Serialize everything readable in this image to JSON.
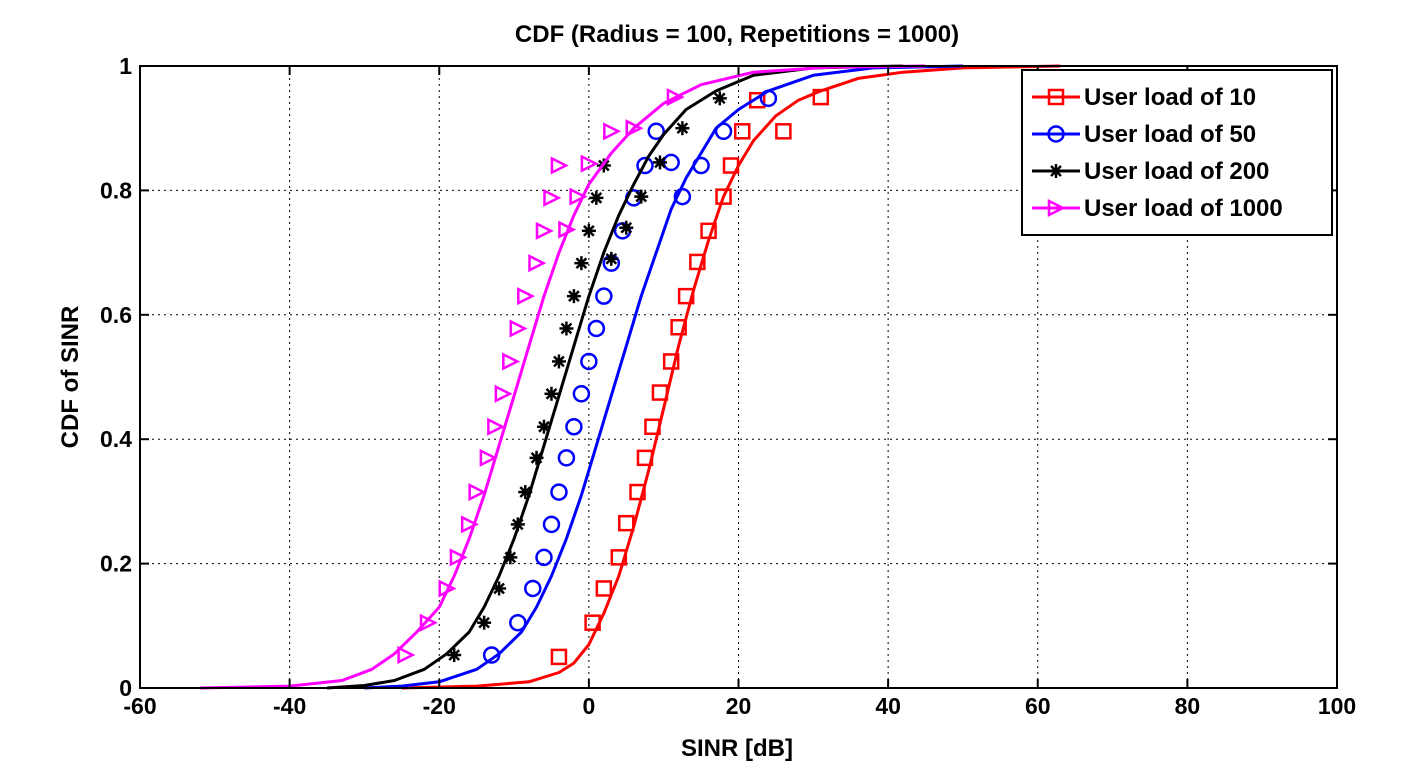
{
  "chart_data": {
    "type": "line",
    "title": "CDF (Radius = 100, Repetitions = 1000)",
    "xlabel": "SINR [dB]",
    "ylabel": "CDF of SINR",
    "xlim": [
      -60,
      100
    ],
    "ylim": [
      0,
      1
    ],
    "xticks": [
      -60,
      -40,
      -20,
      0,
      20,
      40,
      60,
      80,
      100
    ],
    "yticks": [
      0,
      0.2,
      0.4,
      0.6,
      0.8,
      1
    ],
    "xtick_labels": [
      "-60",
      "-40",
      "-20",
      "0",
      "20",
      "40",
      "60",
      "80",
      "100"
    ],
    "ytick_labels": [
      "0",
      "0.2",
      "0.4",
      "0.6",
      "0.8",
      "1"
    ],
    "grid": true,
    "legend_position": "top-right",
    "series": [
      {
        "name": "User load of 10",
        "color": "#ff0000",
        "marker": "square",
        "x": [
          -25,
          -15,
          -8,
          -4,
          -2,
          0,
          2,
          4,
          6,
          8,
          10,
          12,
          14,
          16,
          18,
          20,
          22,
          25,
          28,
          31,
          36,
          42,
          50,
          63
        ],
        "y": [
          0.0,
          0.003,
          0.01,
          0.025,
          0.04,
          0.07,
          0.12,
          0.18,
          0.26,
          0.35,
          0.45,
          0.55,
          0.64,
          0.72,
          0.79,
          0.84,
          0.88,
          0.92,
          0.945,
          0.96,
          0.98,
          0.99,
          0.997,
          1.0
        ],
        "marker_x": [
          -4,
          0.5,
          2,
          4,
          5,
          6.5,
          7.5,
          8.5,
          9.5,
          11,
          12,
          13,
          14.5,
          16,
          18,
          19,
          20.5,
          22.5,
          26,
          31
        ],
        "marker_y": [
          0.05,
          0.105,
          0.16,
          0.21,
          0.265,
          0.315,
          0.37,
          0.42,
          0.475,
          0.525,
          0.58,
          0.63,
          0.685,
          0.735,
          0.79,
          0.84,
          0.895,
          0.945,
          0.895,
          0.95
        ]
      },
      {
        "name": "User load of 50",
        "color": "#0000ff",
        "marker": "circle",
        "x": [
          -30,
          -25,
          -20,
          -15,
          -12,
          -9,
          -7,
          -5,
          -3,
          -1,
          1,
          3,
          5,
          7,
          9,
          11,
          13,
          15,
          17,
          20,
          24,
          30,
          38,
          50
        ],
        "y": [
          0.0,
          0.003,
          0.01,
          0.03,
          0.055,
          0.09,
          0.13,
          0.18,
          0.24,
          0.31,
          0.39,
          0.47,
          0.55,
          0.63,
          0.7,
          0.77,
          0.82,
          0.86,
          0.9,
          0.93,
          0.96,
          0.985,
          0.997,
          1.0
        ],
        "marker_x": [
          -13,
          -9.5,
          -7.5,
          -6,
          -5,
          -4,
          -3,
          -2,
          -1,
          0,
          1,
          2,
          3,
          4.5,
          6,
          7.5,
          9,
          11,
          12.5,
          15,
          18,
          24
        ],
        "marker_y": [
          0.053,
          0.105,
          0.16,
          0.21,
          0.263,
          0.315,
          0.37,
          0.42,
          0.473,
          0.525,
          0.578,
          0.63,
          0.683,
          0.735,
          0.788,
          0.84,
          0.895,
          0.845,
          0.79,
          0.84,
          0.895,
          0.948
        ]
      },
      {
        "name": "User load of 200",
        "color": "#000000",
        "marker": "asterisk",
        "x": [
          -35,
          -30,
          -26,
          -22,
          -19,
          -16,
          -14,
          -12,
          -10,
          -8,
          -6,
          -4,
          -2,
          0,
          2,
          4,
          6,
          8,
          10,
          13,
          17,
          22,
          30,
          42
        ],
        "y": [
          0.0,
          0.004,
          0.012,
          0.03,
          0.055,
          0.09,
          0.13,
          0.18,
          0.24,
          0.31,
          0.39,
          0.47,
          0.55,
          0.63,
          0.7,
          0.76,
          0.81,
          0.855,
          0.89,
          0.93,
          0.96,
          0.985,
          0.997,
          1.0
        ],
        "marker_x": [
          -18,
          -14,
          -12,
          -10.5,
          -9.5,
          -8.5,
          -7,
          -6,
          -5,
          -4,
          -3,
          -2,
          -1,
          0,
          1,
          2,
          3,
          5,
          7,
          9.5,
          12.5,
          17.5
        ],
        "marker_y": [
          0.053,
          0.105,
          0.16,
          0.21,
          0.263,
          0.315,
          0.37,
          0.42,
          0.473,
          0.525,
          0.578,
          0.63,
          0.683,
          0.735,
          0.788,
          0.84,
          0.69,
          0.74,
          0.79,
          0.845,
          0.9,
          0.948
        ]
      },
      {
        "name": "User load of 1000",
        "color": "#ff00ff",
        "marker": "triangle-right",
        "x": [
          -52,
          -40,
          -33,
          -29,
          -26,
          -23,
          -20,
          -18,
          -16,
          -14,
          -12,
          -10,
          -8,
          -6,
          -4,
          -2,
          0,
          3,
          6,
          10,
          15,
          22,
          32,
          45
        ],
        "y": [
          0.0,
          0.003,
          0.012,
          0.03,
          0.055,
          0.09,
          0.13,
          0.18,
          0.24,
          0.31,
          0.39,
          0.47,
          0.55,
          0.63,
          0.7,
          0.76,
          0.81,
          0.86,
          0.9,
          0.94,
          0.97,
          0.99,
          0.998,
          1.0
        ],
        "marker_x": [
          -24.5,
          -21.5,
          -19,
          -17.5,
          -16,
          -15,
          -13.5,
          -12.5,
          -11.5,
          -10.5,
          -9.5,
          -8.5,
          -7,
          -6,
          -5,
          -4,
          -3,
          -1.5,
          0,
          3,
          6,
          11.5
        ],
        "marker_y": [
          0.053,
          0.105,
          0.16,
          0.21,
          0.263,
          0.315,
          0.37,
          0.42,
          0.473,
          0.525,
          0.578,
          0.63,
          0.683,
          0.735,
          0.788,
          0.84,
          0.737,
          0.79,
          0.843,
          0.895,
          0.9,
          0.95
        ]
      }
    ]
  }
}
